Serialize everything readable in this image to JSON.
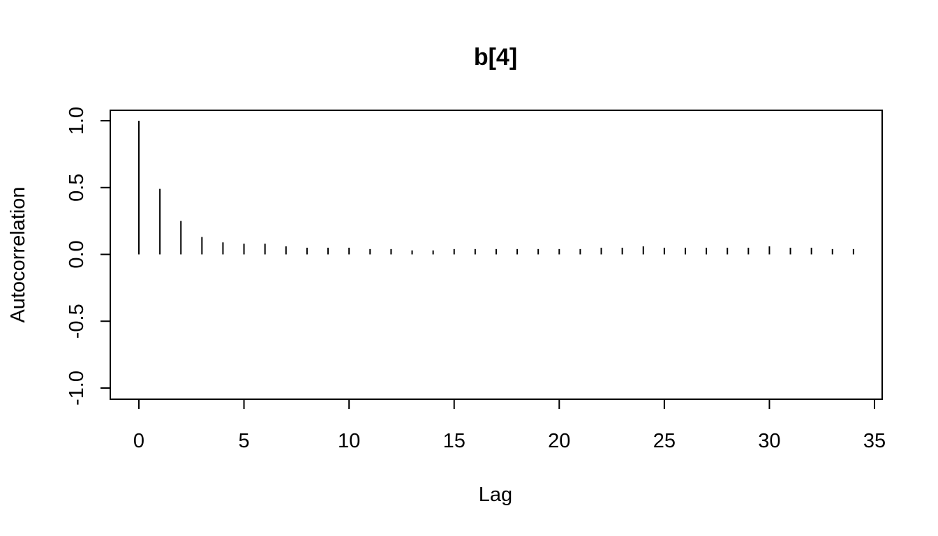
{
  "chart_data": {
    "type": "bar",
    "title": "b[4]",
    "xlabel": "Lag",
    "ylabel": "Autocorrelation",
    "xlim": [
      0,
      35
    ],
    "ylim": [
      -1.0,
      1.0
    ],
    "x_ticks": [
      "0",
      "5",
      "10",
      "15",
      "20",
      "25",
      "30",
      "35"
    ],
    "y_ticks": [
      "-1.0",
      "-0.5",
      "0.0",
      "0.5",
      "1.0"
    ],
    "grid": false,
    "legend": "none",
    "lags": [
      0,
      1,
      2,
      3,
      4,
      5,
      6,
      7,
      8,
      9,
      10,
      11,
      12,
      13,
      14,
      15,
      16,
      17,
      18,
      19,
      20,
      21,
      22,
      23,
      24,
      25,
      26,
      27,
      28,
      29,
      30,
      31,
      32,
      33,
      34
    ],
    "values": [
      1.0,
      0.49,
      0.25,
      0.13,
      0.09,
      0.08,
      0.08,
      0.06,
      0.05,
      0.05,
      0.05,
      0.04,
      0.04,
      0.03,
      0.03,
      0.04,
      0.04,
      0.04,
      0.04,
      0.04,
      0.04,
      0.04,
      0.05,
      0.05,
      0.06,
      0.05,
      0.05,
      0.05,
      0.05,
      0.05,
      0.06,
      0.05,
      0.05,
      0.04,
      0.04
    ]
  }
}
